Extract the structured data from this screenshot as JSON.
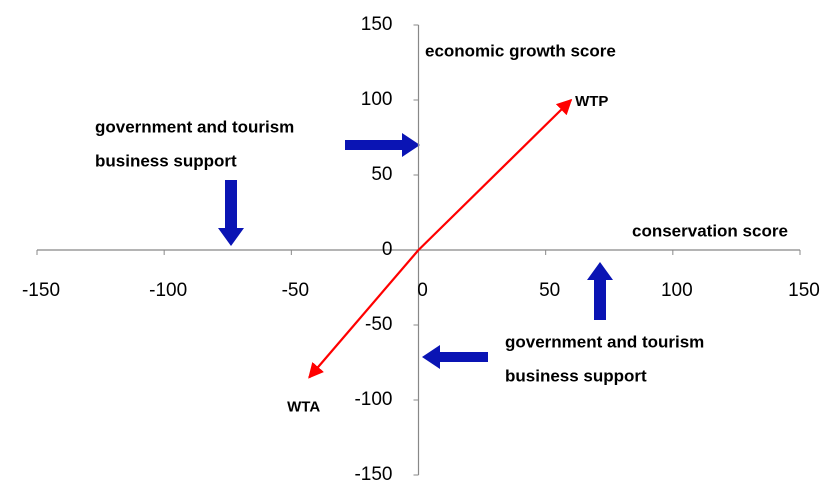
{
  "chart_data": {
    "type": "vector",
    "xlim": [
      -150,
      150
    ],
    "ylim": [
      -150,
      150
    ],
    "xticks": [
      -150,
      -100,
      -50,
      0,
      50,
      100,
      150
    ],
    "yticks": [
      150,
      100,
      50,
      0,
      -50,
      -100,
      -150
    ],
    "series": [
      {
        "name": "WTP",
        "color": "#ff0000",
        "x": [
          0,
          60
        ],
        "values": [
          0,
          100
        ]
      },
      {
        "name": "WTA",
        "color": "#ff0000",
        "x": [
          0,
          -43
        ],
        "values": [
          0,
          -85
        ]
      }
    ],
    "y_axis_label": "economic growth score",
    "x_axis_label": "conservation score",
    "annotations": [
      [
        "government  and tourism",
        "business  support"
      ],
      [
        "government  and tourism",
        "business  support"
      ]
    ]
  }
}
